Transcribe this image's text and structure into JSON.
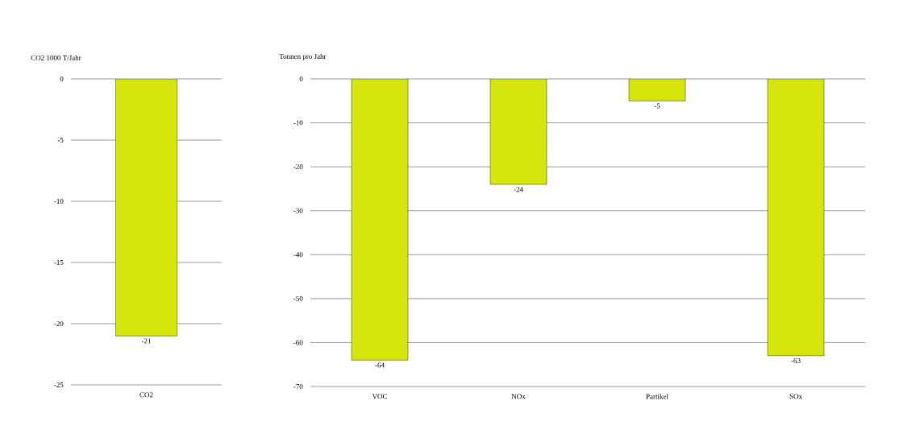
{
  "chart_data": [
    {
      "type": "bar",
      "ylabel": "CO2 1000 T/Jahr",
      "categories": [
        "CO2"
      ],
      "values": [
        -21
      ],
      "color": "#d4e60c",
      "ylim": [
        -25,
        0
      ],
      "yticks": [
        -25,
        -20,
        -15,
        -10,
        -5,
        0
      ],
      "grid": "y",
      "data_labels": true
    },
    {
      "type": "bar",
      "ylabel": "Tonnen pro Jahr",
      "categories": [
        "VOC",
        "NOx",
        "Partikel",
        "SOx"
      ],
      "values": [
        -64,
        -24,
        -5,
        -63
      ],
      "color": "#d4e60c",
      "ylim": [
        -70,
        0
      ],
      "yticks": [
        -70,
        -60,
        -50,
        -40,
        -30,
        -20,
        -10,
        0
      ],
      "grid": "y",
      "data_labels": true
    }
  ]
}
